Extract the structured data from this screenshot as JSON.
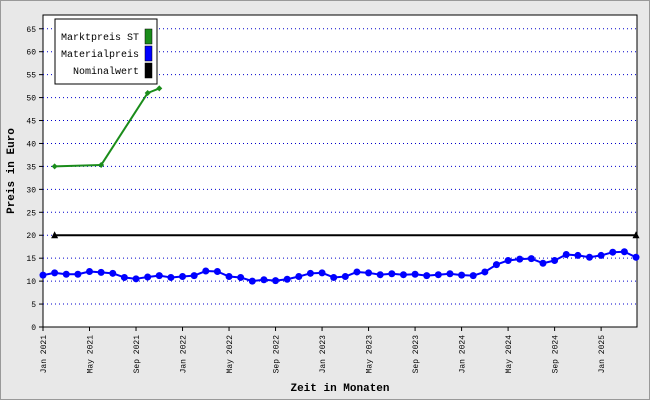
{
  "chart_data": {
    "type": "line",
    "y_label": "Preis in Euro",
    "x_label": "Zeit in Monaten",
    "categories": [
      "Jan 2021",
      null,
      null,
      null,
      "May 2021",
      null,
      null,
      null,
      "Sep 2021",
      null,
      null,
      null,
      "Jan 2022",
      null,
      null,
      null,
      "May 2022",
      null,
      null,
      null,
      "Sep 2022",
      null,
      null,
      null,
      "Jan 2023",
      null,
      null,
      null,
      "May 2023",
      null,
      null,
      null,
      "Sep 2023",
      null,
      null,
      null,
      "Jan 2024",
      null,
      null,
      null,
      "May 2024",
      null,
      null,
      null,
      "Sep 2024",
      null,
      null,
      null,
      "Jan 2025",
      null,
      null,
      null
    ],
    "ylim": [
      0,
      68
    ],
    "yticks": [
      0,
      5,
      10,
      15,
      20,
      25,
      30,
      35,
      40,
      45,
      50,
      55,
      60,
      65
    ],
    "grid": true,
    "series": [
      {
        "name": "Marktpreis ST",
        "color": "#1a8c1a",
        "marker": "diamond",
        "values": [
          null,
          35,
          null,
          null,
          null,
          35.3,
          null,
          null,
          null,
          51,
          52,
          null,
          null,
          null,
          null,
          null,
          null,
          null,
          null,
          null,
          null,
          null,
          null,
          null,
          null,
          null,
          null,
          null,
          null,
          null,
          null,
          null,
          null,
          null,
          null,
          null,
          null,
          null,
          null,
          null,
          null,
          null,
          null,
          null,
          null,
          null,
          null,
          null,
          null,
          null,
          null,
          null
        ]
      },
      {
        "name": "Materialpreis",
        "color": "#0000ff",
        "marker": "circle",
        "values": [
          11.3,
          11.8,
          11.5,
          11.5,
          12.1,
          11.9,
          11.7,
          10.8,
          10.5,
          10.9,
          11.2,
          10.8,
          11.0,
          11.2,
          12.2,
          12.1,
          11.0,
          10.8,
          10.0,
          10.3,
          10.1,
          10.4,
          11.0,
          11.7,
          11.8,
          10.8,
          11.0,
          12.0,
          11.8,
          11.4,
          11.6,
          11.4,
          11.5,
          11.2,
          11.4,
          11.6,
          11.3,
          11.2,
          12.0,
          13.6,
          14.5,
          14.8,
          14.9,
          13.9,
          14.5,
          15.8,
          15.6,
          15.2,
          15.6,
          16.3,
          16.4,
          15.2
        ]
      },
      {
        "name": "Nominalwert",
        "color": "#000000",
        "marker": "triangle",
        "values": [
          null,
          20,
          null,
          null,
          null,
          null,
          null,
          null,
          null,
          null,
          null,
          null,
          null,
          null,
          null,
          null,
          null,
          null,
          null,
          null,
          null,
          null,
          null,
          null,
          null,
          null,
          null,
          null,
          null,
          null,
          null,
          null,
          null,
          null,
          null,
          null,
          null,
          null,
          null,
          null,
          null,
          null,
          null,
          null,
          null,
          null,
          null,
          null,
          null,
          null,
          null,
          20
        ]
      }
    ]
  }
}
